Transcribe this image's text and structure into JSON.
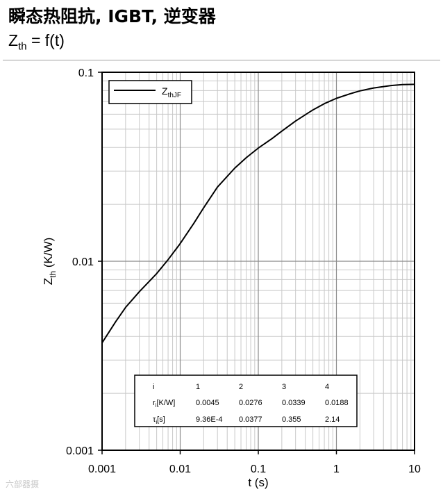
{
  "header": {
    "title": "瞬态热阻抗, IGBT, 逆变器",
    "subtitle_main": "Z",
    "subtitle_sub": "th",
    "subtitle_rest": " = f(t)"
  },
  "watermark": "六部器摄",
  "chart_data": {
    "type": "line",
    "xscale": "log",
    "yscale": "log",
    "xlim": [
      0.001,
      10
    ],
    "ylim": [
      0.001,
      0.1
    ],
    "xlabel": "t (s)",
    "ylabel_main": "Z",
    "ylabel_sub": "th",
    "ylabel_rest": " (K/W)",
    "xticks": [
      "0.001",
      "0.01",
      "0.1",
      "1",
      "10"
    ],
    "yticks": [
      "0.001",
      "0.01",
      "0.1"
    ],
    "grid": true,
    "legend_position": "top-left",
    "series": [
      {
        "name_main": "Z",
        "name_sub": "thJF",
        "color": "#000000",
        "x": [
          0.001,
          0.0015,
          0.002,
          0.003,
          0.005,
          0.007,
          0.01,
          0.015,
          0.02,
          0.03,
          0.05,
          0.07,
          0.1,
          0.15,
          0.2,
          0.3,
          0.5,
          0.7,
          1,
          1.5,
          2,
          3,
          5,
          7,
          10
        ],
        "y": [
          0.0037,
          0.0048,
          0.0057,
          0.0069,
          0.0086,
          0.0102,
          0.0124,
          0.0159,
          0.0192,
          0.0247,
          0.0311,
          0.0353,
          0.0397,
          0.0446,
          0.0488,
          0.0552,
          0.0632,
          0.0682,
          0.0728,
          0.077,
          0.0797,
          0.0826,
          0.0851,
          0.086,
          0.0863
        ]
      }
    ],
    "table": {
      "header": [
        "i",
        "1",
        "2",
        "3",
        "4"
      ],
      "rows": [
        {
          "label_main": "r",
          "label_sub": "i",
          "label_rest": "[K/W]",
          "values": [
            "0.0045",
            "0.0276",
            "0.0339",
            "0.0188"
          ]
        },
        {
          "label_main": "τ",
          "label_sub": "i",
          "label_rest": "[s]",
          "values": [
            "9.36E-4",
            "0.0377",
            "0.355",
            "2.14"
          ]
        }
      ]
    }
  }
}
